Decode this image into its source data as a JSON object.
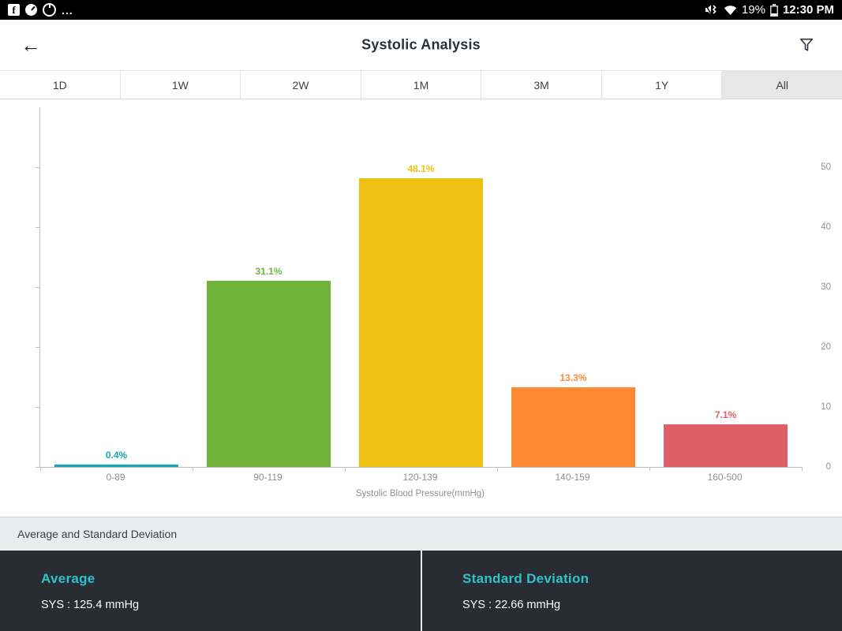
{
  "status_bar": {
    "more_label": "...",
    "battery_percent": "19%",
    "time": "12:30 PM",
    "left_icons": [
      "facebook-icon",
      "gauge-icon",
      "power-icon"
    ],
    "right_icons": [
      "volume-mute-vibrate-icon",
      "wifi-icon",
      "battery-icon"
    ]
  },
  "header": {
    "title": "Systolic Analysis"
  },
  "tabs": {
    "items": [
      {
        "label": "1D",
        "selected": false
      },
      {
        "label": "1W",
        "selected": false
      },
      {
        "label": "2W",
        "selected": false
      },
      {
        "label": "1M",
        "selected": false
      },
      {
        "label": "3M",
        "selected": false
      },
      {
        "label": "1Y",
        "selected": false
      },
      {
        "label": "All",
        "selected": true
      }
    ]
  },
  "chart_data": {
    "type": "bar",
    "categories": [
      "0-89",
      "90-119",
      "120-139",
      "140-159",
      "160-500"
    ],
    "values": [
      0.4,
      31.1,
      48.1,
      13.3,
      7.1
    ],
    "value_labels": [
      "0.4%",
      "31.1%",
      "48.1%",
      "13.3%",
      "7.1%"
    ],
    "bar_colors": [
      "#12a9b8",
      "#72b33c",
      "#eec011",
      "#fd8a33",
      "#e05f66"
    ],
    "title": "",
    "xlabel": "Systolic Blood Pressure(mmHg)",
    "ylabel": "",
    "yticks": [
      0,
      10,
      20,
      30,
      40,
      50
    ],
    "ylim": [
      0,
      60
    ],
    "grid": false,
    "legend": "none"
  },
  "summary": {
    "section_title": "Average and Standard Deviation",
    "average": {
      "title": "Average",
      "value": "SYS : 125.4 mmHg"
    },
    "std_dev": {
      "title": "Standard Deviation",
      "value": "SYS : 22.66 mmHg"
    }
  },
  "colors": {
    "accent_teal": "#2fc3cd",
    "footer_bg": "#282c33",
    "status_bar_bg": "#000000",
    "selected_tab_bg": "#e7e7e7"
  }
}
